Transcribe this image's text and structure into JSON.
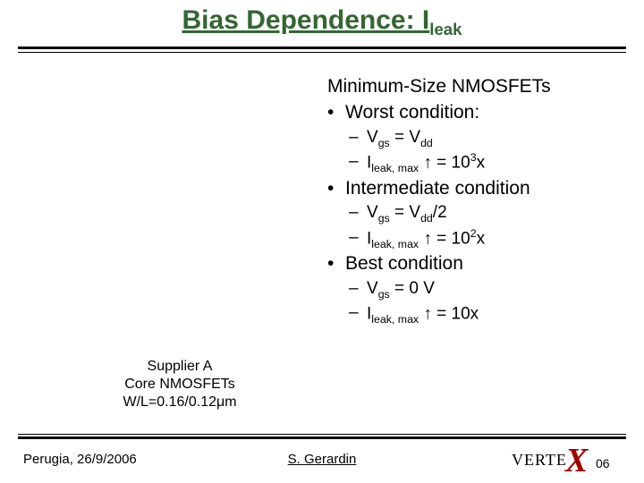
{
  "title": {
    "pre": "Bias Dependence: I",
    "sub": "leak",
    "color": "#336633",
    "fontsize": 30
  },
  "content": {
    "heading": "Minimum-Size NMOSFETs",
    "bullets": [
      {
        "label": "Worst condition:",
        "subs": [
          {
            "pre": "V",
            "sub1": "gs",
            "mid": " = V",
            "sub2": "dd",
            "post": ""
          },
          {
            "pre": "I",
            "sub1": "leak, max",
            "mid": " ↑ = 10",
            "sup": "3",
            "post": "x"
          }
        ]
      },
      {
        "label": "Intermediate condition",
        "subs": [
          {
            "pre": "V",
            "sub1": "gs",
            "mid": " = V",
            "sub2": "dd",
            "post": "/2"
          },
          {
            "pre": "I",
            "sub1": "leak, max",
            "mid": " ↑ = 10",
            "sup": "2",
            "post": "x"
          }
        ]
      },
      {
        "label": "Best condition",
        "subs": [
          {
            "pre": "V",
            "sub1": "gs",
            "mid": " = 0 V",
            "sub2": "",
            "post": ""
          },
          {
            "pre": "I",
            "sub1": "leak, max",
            "mid": " ↑ = 10x",
            "sup": "",
            "post": ""
          }
        ]
      }
    ],
    "fontsize_h": 21,
    "fontsize_sub": 19
  },
  "caption": {
    "line1": "Supplier A",
    "line2": "Core NMOSFETs",
    "line3": "W/L=0.16/0.12μm"
  },
  "footer": {
    "left": "Perugia, 26/9/2006",
    "mid": "S. Gerardin"
  },
  "logo": {
    "text1": "VERTE",
    "x": "X",
    "text2": "06",
    "x_color": "#a00000"
  },
  "rules": {
    "thick_color": "#000000",
    "thin_color": "#000000"
  }
}
